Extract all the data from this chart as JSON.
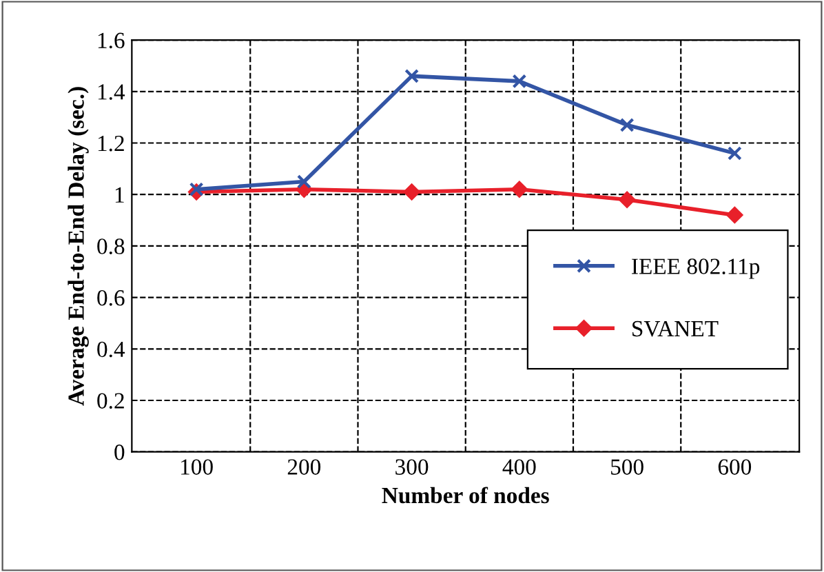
{
  "chart_data": {
    "type": "line",
    "xlabel": "Number of nodes",
    "ylabel": "Average End-to-End Delay (sec.)",
    "categories": [
      "100",
      "200",
      "300",
      "400",
      "500",
      "600"
    ],
    "series": [
      {
        "name": "IEEE 802.11p",
        "color": "#3355a5",
        "marker": "cross",
        "values": [
          1.02,
          1.05,
          1.46,
          1.44,
          1.27,
          1.16
        ]
      },
      {
        "name": "SVANET",
        "color": "#e8202a",
        "marker": "diamond",
        "values": [
          1.01,
          1.02,
          1.01,
          1.02,
          0.98,
          0.92
        ]
      }
    ],
    "ylim": [
      0,
      1.6
    ],
    "yticks": [
      0,
      0.2,
      0.4,
      0.6,
      0.8,
      1,
      1.2,
      1.4,
      1.6
    ],
    "grid": true,
    "legend": "center right",
    "line_style": "solid"
  }
}
